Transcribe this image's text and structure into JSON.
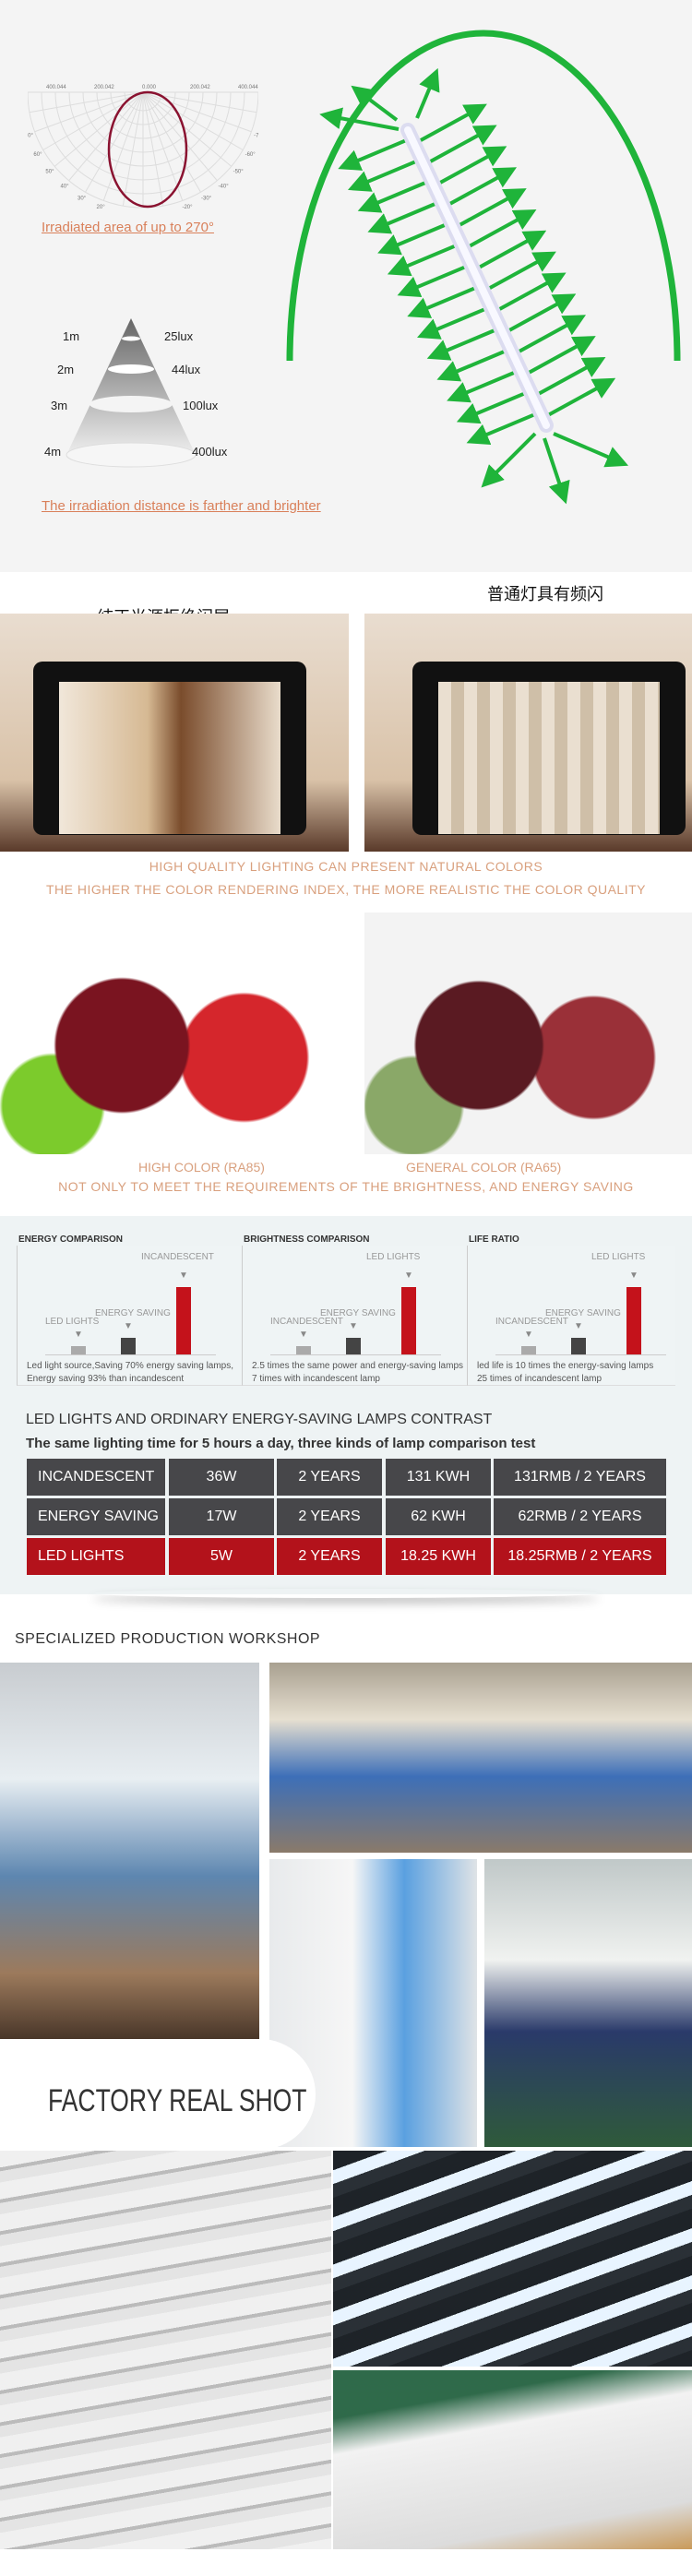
{
  "beam": {
    "polar_top_labels": [
      "400.044",
      "200.042",
      "0.000",
      "200.042",
      "400.044"
    ],
    "polar_left_angles": [
      "90°",
      "80°",
      "70°",
      "60°",
      "50°",
      "40°",
      "30°",
      "20°",
      "10°",
      "0°"
    ],
    "polar_right_angles": [
      "-90°",
      "-80°",
      "-70°",
      "-60°",
      "-50°",
      "-40°",
      "-30°",
      "-20°",
      "-10°"
    ],
    "irradiated_caption": "Irradiated area of up to 270°",
    "distance_levels": [
      {
        "d": "1m",
        "lux": "25lux"
      },
      {
        "d": "2m",
        "lux": "44lux"
      },
      {
        "d": "3m",
        "lux": "100lux"
      },
      {
        "d": "4m",
        "lux": "400lux"
      }
    ],
    "distance_caption": "The irradiation distance is farther and brighter",
    "arrow_color": "#1fb43a"
  },
  "flicker": {
    "left_caption": "纯正光源拒绝闪屏",
    "right_caption": "普通灯具有频闪",
    "line1": "HIGH QUALITY LIGHTING CAN PRESENT NATURAL COLORS",
    "line2": "THE HIGHER THE COLOR RENDERING INDEX, THE MORE REALISTIC THE COLOR QUALITY"
  },
  "color": {
    "left_label": "HIGH COLOR (RA85)",
    "right_label": "GENERAL COLOR (RA65)",
    "line": "NOT ONLY TO MEET THE REQUIREMENTS OF THE BRIGHTNESS, AND ENERGY SAVING"
  },
  "comparisons": [
    {
      "title": "ENERGY COMPARISON",
      "labels": [
        "LED LIGHTS",
        "ENERGY SAVING",
        "INCANDESCENT"
      ],
      "levels": [
        0.12,
        0.25,
        1
      ],
      "desc": [
        "Led light source,Saving 70% energy saving lamps,",
        "Energy saving 93% than incandescent"
      ]
    },
    {
      "title": "BRIGHTNESS COMPARISON",
      "labels": [
        "INCANDESCENT",
        "ENERGY SAVING",
        "LED LIGHTS"
      ],
      "levels": [
        0.12,
        0.25,
        1
      ],
      "desc": [
        "2.5 times the same power and energy-saving lamps",
        "7 times with incandescent lamp"
      ]
    },
    {
      "title": "LIFE RATIO",
      "labels": [
        "INCANDESCENT",
        "ENERGY SAVING",
        "LED LIGHTS"
      ],
      "levels": [
        0.12,
        0.25,
        1
      ],
      "desc": [
        "led life is 10 times the energy-saving lamps",
        "25 times of incandescent lamp"
      ]
    }
  ],
  "contrast": {
    "title": "LED LIGHTS AND ORDINARY ENERGY-SAVING LAMPS CONTRAST",
    "subtitle": "The same lighting time for 5 hours a day, three kinds of lamp comparison test",
    "rows": [
      [
        "INCANDESCENT",
        "36W",
        "2 YEARS",
        "131 KWH",
        "131RMB / 2 YEARS"
      ],
      [
        "ENERGY SAVING",
        "17W",
        "2 YEARS",
        "62 KWH",
        "62RMB / 2 YEARS"
      ],
      [
        "LED LIGHTS",
        "5W",
        "2 YEARS",
        "18.25 KWH",
        "18.25RMB / 2 YEARS"
      ]
    ],
    "row_colors": [
      "#47474a",
      "#47474a",
      "#b3121b"
    ]
  },
  "workshop": {
    "heading": "SPECIALIZED PRODUCTION WORKSHOP",
    "badge": "FACTORY REAL SHOT"
  }
}
